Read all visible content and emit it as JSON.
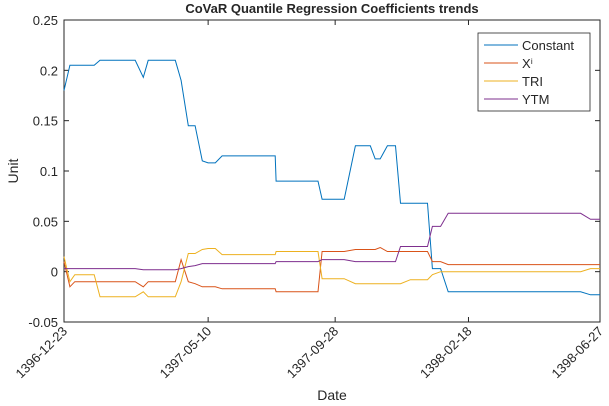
{
  "chart_data": {
    "type": "line",
    "title": "CoVaR Quantile Regression Coefficients trends",
    "x_label": "Date",
    "y_label": "Unit",
    "x": [
      1,
      2.3,
      3.4,
      5.7,
      7.7,
      9,
      16.8,
      18.6,
      19.7,
      25.7,
      27,
      28.6,
      30.1,
      31.7,
      33,
      34.6,
      36.1,
      47.9,
      48.1,
      57.4,
      58.3,
      63.2,
      65.7,
      69,
      70.1,
      71.2,
      72.8,
      74.6,
      75.7,
      77.9,
      81.7,
      82.8,
      84.6,
      86.3,
      115.7,
      117.9,
      120
    ],
    "xlim": [
      1,
      120
    ],
    "xticks": [
      {
        "value": 1,
        "label": "1396-12-23"
      },
      {
        "value": 33,
        "label": "1397-05-10"
      },
      {
        "value": 61.2,
        "label": "1397-09-28"
      },
      {
        "value": 90.8,
        "label": "1398-02-18"
      },
      {
        "value": 120,
        "label": "1398-06-27"
      }
    ],
    "ylim": [
      -0.05,
      0.25
    ],
    "yticks": [
      -0.05,
      0,
      0.05,
      0.1,
      0.15,
      0.2,
      0.25
    ],
    "grid": false,
    "legend": "upper right",
    "series": [
      {
        "name": "Constant",
        "color": "#0072BD",
        "values": [
          0.18,
          0.205,
          0.205,
          0.205,
          0.205,
          0.21,
          0.21,
          0.193,
          0.21,
          0.21,
          0.19,
          0.145,
          0.145,
          0.11,
          0.108,
          0.108,
          0.115,
          0.115,
          0.09,
          0.09,
          0.072,
          0.072,
          0.125,
          0.125,
          0.112,
          0.112,
          0.125,
          0.125,
          0.068,
          0.068,
          0.068,
          0.003,
          0.003,
          -0.02,
          -0.02,
          -0.023,
          -0.023
        ]
      },
      {
        "name": "Xⁱ",
        "color": "#D95319",
        "values": [
          0.01,
          -0.015,
          -0.01,
          -0.01,
          -0.01,
          -0.01,
          -0.01,
          -0.015,
          -0.01,
          -0.01,
          0.012,
          -0.01,
          -0.012,
          -0.015,
          -0.015,
          -0.015,
          -0.017,
          -0.017,
          -0.02,
          -0.02,
          0.02,
          0.02,
          0.022,
          0.022,
          0.022,
          0.024,
          0.02,
          0.02,
          0.02,
          0.02,
          0.02,
          0.01,
          0.01,
          0.007,
          0.007,
          0.007,
          0.007
        ]
      },
      {
        "name": "TRI",
        "color": "#EDB120",
        "values": [
          0.015,
          -0.01,
          -0.003,
          -0.003,
          -0.003,
          -0.025,
          -0.025,
          -0.02,
          -0.025,
          -0.025,
          -0.01,
          0.018,
          0.018,
          0.022,
          0.023,
          0.023,
          0.017,
          0.017,
          0.02,
          0.02,
          -0.007,
          -0.007,
          -0.012,
          -0.012,
          -0.012,
          -0.012,
          -0.012,
          -0.012,
          -0.012,
          -0.008,
          -0.008,
          -0.003,
          0,
          0,
          0,
          0.003,
          0.003
        ]
      },
      {
        "name": "YTM",
        "color": "#7E2F8E",
        "values": [
          0.003,
          0.003,
          0.003,
          0.003,
          0.003,
          0.003,
          0.003,
          0.002,
          0.002,
          0.002,
          0.003,
          0.005,
          0.006,
          0.008,
          0.008,
          0.008,
          0.008,
          0.008,
          0.01,
          0.01,
          0.012,
          0.012,
          0.01,
          0.01,
          0.01,
          0.01,
          0.01,
          0.01,
          0.025,
          0.025,
          0.025,
          0.045,
          0.045,
          0.058,
          0.058,
          0.052,
          0.052
        ]
      }
    ]
  }
}
